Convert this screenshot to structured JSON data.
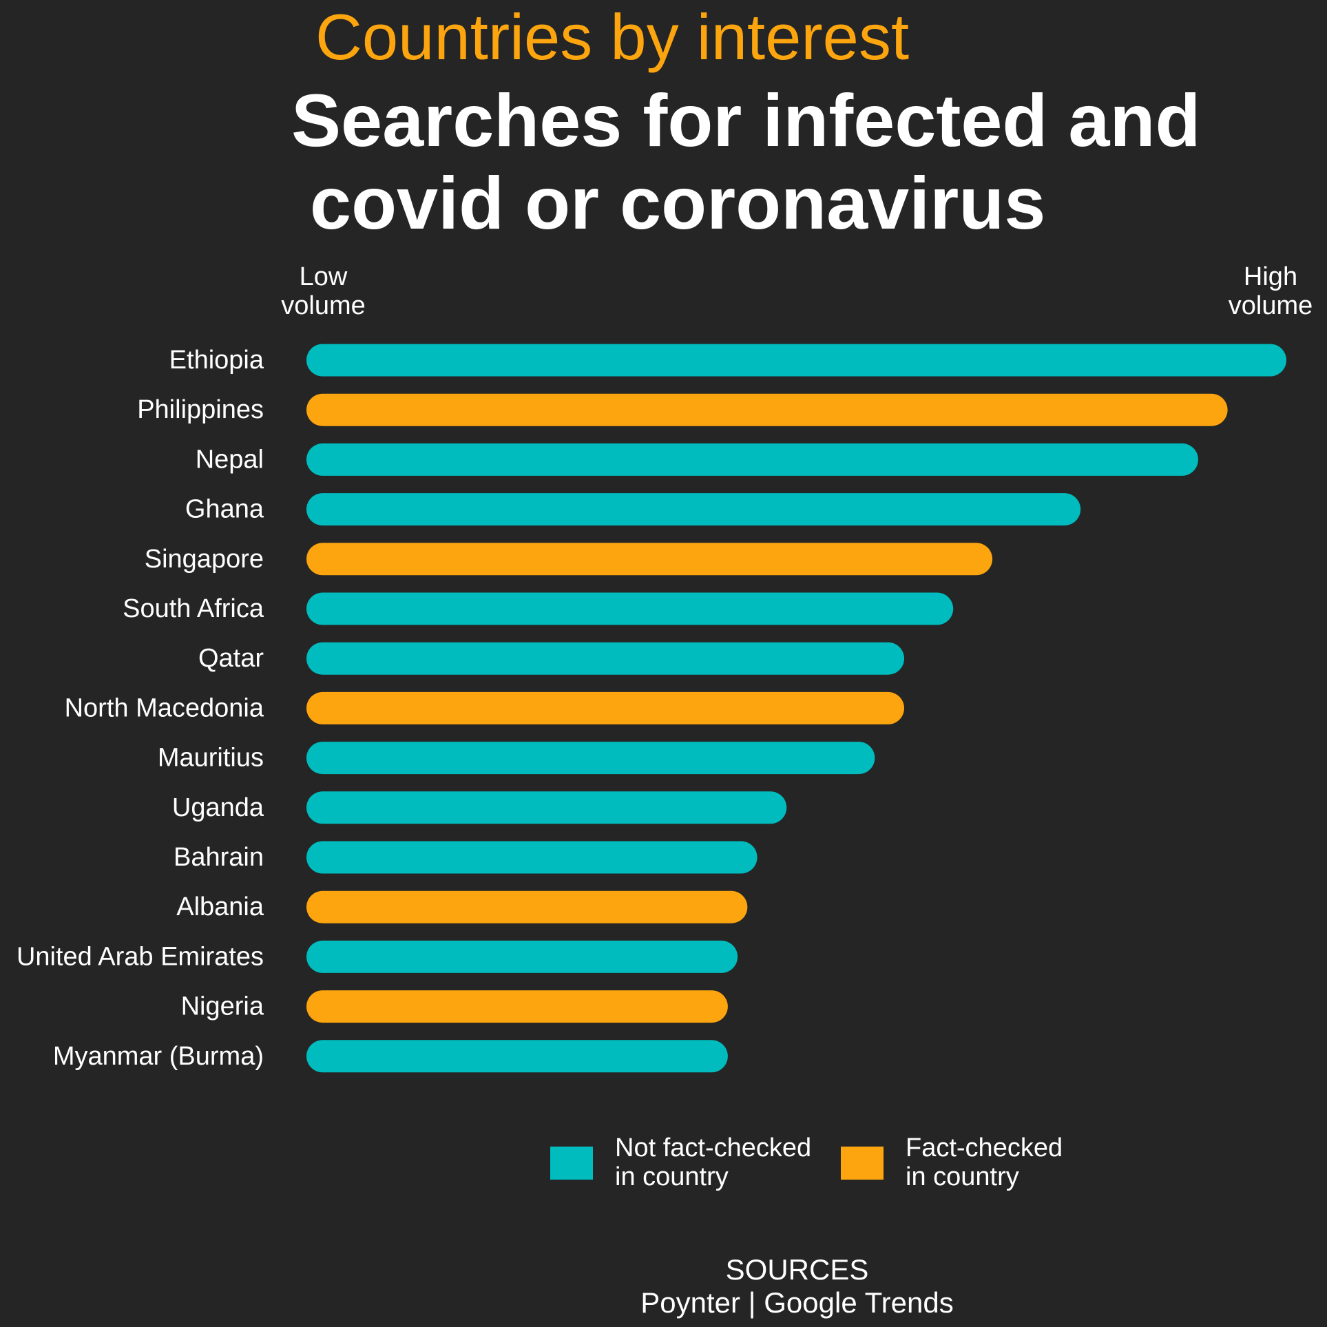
{
  "header": {
    "kicker": "Countries by interest",
    "headline_line1": "Searches for infected and",
    "headline_line2": "covid or coronavirus"
  },
  "scale": {
    "low_line1": "Low",
    "low_line2": "volume",
    "high_line1": "High",
    "high_line2": "volume"
  },
  "legend": [
    {
      "line1": "Not fact-checked",
      "line2": "in country",
      "color": "#00bcbe"
    },
    {
      "line1": "Fact-checked",
      "line2": "in country",
      "color": "#fca50f"
    }
  ],
  "sources": {
    "heading": "SOURCES",
    "text": "Poynter | Google Trends"
  },
  "chart_data": {
    "type": "bar",
    "orientation": "horizontal",
    "title": "Searches for infected and covid or coronavirus",
    "subtitle": "Countries by interest",
    "categories": [
      "Ethiopia",
      "Philippines",
      "Nepal",
      "Ghana",
      "Singapore",
      "South Africa",
      "Qatar",
      "North Macedonia",
      "Mauritius",
      "Uganda",
      "Bahrain",
      "Albania",
      "United Arab Emirates",
      "Nigeria",
      "Myanmar (Burma)"
    ],
    "values": [
      100,
      94,
      91,
      79,
      70,
      66,
      61,
      61,
      58,
      49,
      46,
      45,
      44,
      43,
      43
    ],
    "fact_checked": [
      false,
      true,
      false,
      false,
      true,
      false,
      false,
      true,
      false,
      false,
      false,
      true,
      false,
      true,
      false
    ],
    "xlim": [
      0,
      100
    ],
    "colors": {
      "not_fact_checked": "#00bcbe",
      "fact_checked": "#fca50f"
    },
    "grid": false,
    "legend_position": "bottom"
  }
}
